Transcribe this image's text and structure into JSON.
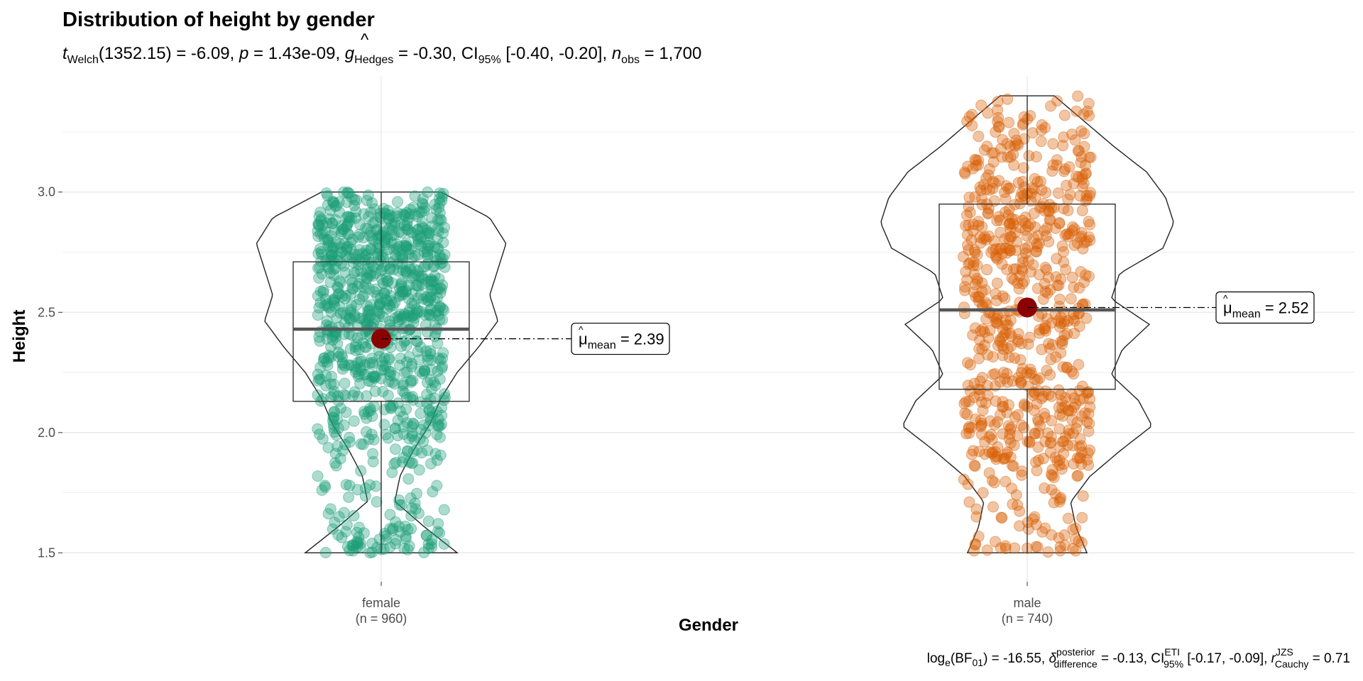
{
  "chart_data": {
    "type": "violin-box-jitter",
    "title": "Distribution of height by gender",
    "subtitle": {
      "t_label": "t",
      "t_sub": "Welch",
      "t_df": "(1352.15) = -6.09, ",
      "p_label": "p",
      "p_value": " = 1.43e-09, ",
      "g_label": "g",
      "g_sub": "Hedges",
      "g_value": " = -0.30, ",
      "ci_label": "CI",
      "ci_sub": "95%",
      "ci_value": " [-0.40, -0.20], ",
      "n_label": "n",
      "n_sub": "obs",
      "n_value": " = 1,700"
    },
    "xlabel": "Gender",
    "ylabel": "Height",
    "ylim": [
      1.38,
      3.48
    ],
    "yticks": [
      "1.5",
      "2.0",
      "2.5",
      "3.0"
    ],
    "ytick_values": [
      1.5,
      2.0,
      2.5,
      3.0
    ],
    "categories": [
      {
        "name": "female",
        "n_label": "(n = 960)",
        "n": 960,
        "color": "#1b9e77",
        "box": {
          "q1": 2.13,
          "median": 2.43,
          "q3": 2.71,
          "whisker_low": 1.5,
          "whisker_high": 3.0
        },
        "mean": 2.39,
        "mean_label_sub": "mean",
        "mean_label_value": " = 2.39",
        "range": [
          1.5,
          3.0
        ],
        "violin_width": [
          0.28,
          0.16,
          0.05,
          0.07,
          0.12,
          0.18,
          0.22,
          0.28,
          0.36,
          0.43,
          0.4,
          0.43,
          0.46,
          0.4,
          0.22
        ]
      },
      {
        "name": "male",
        "n_label": "(n = 740)",
        "n": 740,
        "color": "#d95f02",
        "box": {
          "q1": 2.18,
          "median": 2.51,
          "q3": 2.95,
          "whisker_low": 1.5,
          "whisker_high": 3.4
        },
        "mean": 2.52,
        "mean_label_sub": "mean",
        "mean_label_value": " = 2.52",
        "range": [
          1.5,
          3.4
        ],
        "violin_width": [
          0.22,
          0.18,
          0.16,
          0.23,
          0.34,
          0.46,
          0.41,
          0.31,
          0.35,
          0.45,
          0.31,
          0.34,
          0.5,
          0.54,
          0.51,
          0.44,
          0.32,
          0.21,
          0.1
        ]
      }
    ],
    "mean_color": "#8b0000",
    "caption": {
      "log_label": "log",
      "log_sub": "e",
      "bf_label": "(BF",
      "bf_sub": "01",
      "bf_value": ") = -16.55, ",
      "delta_sup": "posterior",
      "delta_sub": "difference",
      "delta_value": " = -0.13, ",
      "ci_label": "CI",
      "ci_sup": "ETI",
      "ci_sub": "95%",
      "ci_value": " [-0.17, -0.09], ",
      "r_label": "r",
      "r_sup": "JZS",
      "r_sub": "Cauchy",
      "r_value": " = 0.71"
    }
  }
}
